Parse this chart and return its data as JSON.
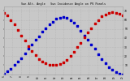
{
  "title": "Sun Alt. Angle   Sun Incidence Angle on PV Panels",
  "bg_color": "#c8c8c8",
  "plot_bg_color": "#c8c8c8",
  "grid_color": "#aaaaaa",
  "text_color": "#000000",
  "blue_color": "#0000cc",
  "red_color": "#cc0000",
  "y_min": 0,
  "y_max": 75,
  "y_ticks": [
    10,
    20,
    30,
    40,
    50,
    60,
    70
  ],
  "x_min": 0,
  "x_max": 34,
  "time_labels": [
    "6",
    "7",
    "8",
    "9",
    "10",
    "11",
    "12",
    "13",
    "14",
    "15",
    "16",
    "17",
    "18",
    "19",
    "20"
  ],
  "sun_altitude_x": [
    0,
    1,
    2,
    3,
    4,
    5,
    6,
    7,
    8,
    9,
    10,
    11,
    12,
    13,
    14,
    15,
    16,
    17,
    18,
    19,
    20,
    21,
    22,
    23,
    24,
    25,
    26,
    27,
    28,
    29,
    30,
    31,
    32,
    33,
    34
  ],
  "sun_altitude_y": [
    1,
    3,
    6,
    10,
    14,
    18,
    23,
    28,
    33,
    38,
    42,
    47,
    51,
    55,
    58,
    61,
    62,
    63,
    62,
    60,
    57,
    53,
    48,
    43,
    38,
    33,
    28,
    22,
    17,
    12,
    8,
    5,
    2,
    1,
    0
  ],
  "incidence_x": [
    0,
    1,
    2,
    3,
    4,
    5,
    6,
    7,
    8,
    9,
    10,
    11,
    12,
    13,
    14,
    15,
    16,
    17,
    18,
    19,
    20,
    21,
    22,
    23,
    24,
    25,
    26,
    27,
    28,
    29,
    30,
    31,
    32,
    33,
    34
  ],
  "incidence_y": [
    68,
    65,
    60,
    55,
    49,
    43,
    37,
    31,
    26,
    21,
    17,
    14,
    12,
    10,
    10,
    10,
    11,
    13,
    16,
    20,
    25,
    30,
    35,
    41,
    46,
    51,
    56,
    60,
    64,
    66,
    68,
    69,
    68,
    67,
    65
  ]
}
